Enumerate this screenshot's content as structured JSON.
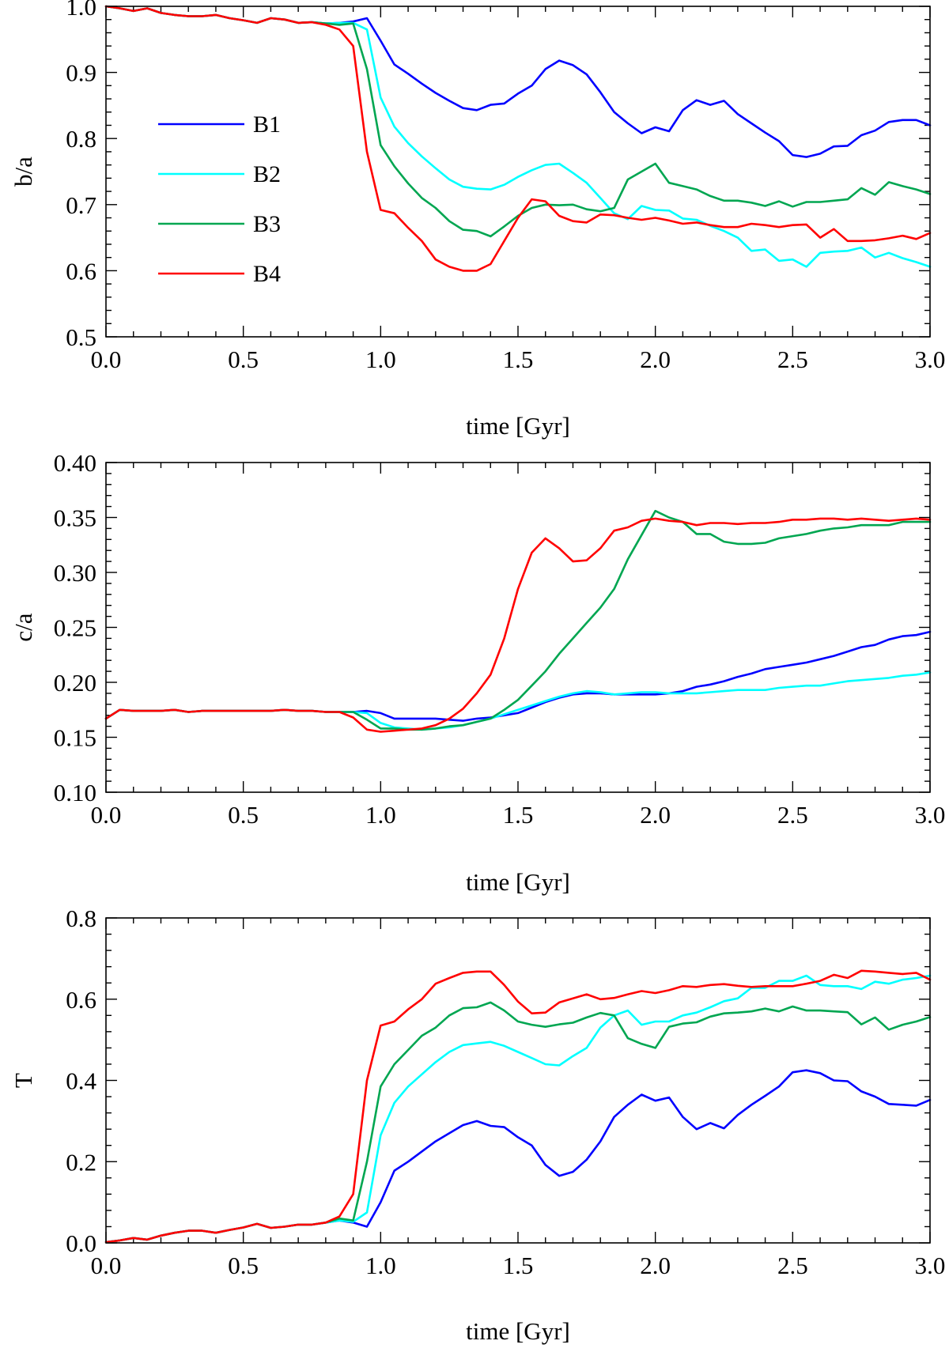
{
  "chart_data": [
    {
      "type": "line",
      "panel": "top",
      "ylabel": "b/a",
      "xlabel": "time [Gyr]",
      "xlim": [
        0.0,
        3.0
      ],
      "ylim": [
        0.5,
        1.0
      ],
      "xticks": [
        "0.0",
        "0.5",
        "1.0",
        "1.5",
        "2.0",
        "2.5",
        "3.0"
      ],
      "yticks": [
        "0.5",
        "0.6",
        "0.7",
        "0.8",
        "0.9",
        "1.0"
      ],
      "legend_position": "center-left",
      "x": [
        0.0,
        0.05,
        0.1,
        0.15,
        0.2,
        0.25,
        0.3,
        0.35,
        0.4,
        0.45,
        0.5,
        0.55,
        0.6,
        0.65,
        0.7,
        0.75,
        0.8,
        0.85,
        0.9,
        0.95,
        1.0,
        1.05,
        1.1,
        1.15,
        1.2,
        1.25,
        1.3,
        1.35,
        1.4,
        1.45,
        1.5,
        1.55,
        1.6,
        1.65,
        1.7,
        1.75,
        1.8,
        1.85,
        1.9,
        1.95,
        2.0,
        2.05,
        2.1,
        2.15,
        2.2,
        2.25,
        2.3,
        2.35,
        2.4,
        2.45,
        2.5,
        2.55,
        2.6,
        2.65,
        2.7,
        2.75,
        2.8,
        2.85,
        2.9,
        2.95,
        3.0
      ],
      "series": [
        {
          "name": "B1",
          "color": "#0000ff",
          "values": [
            1.0,
            0.997,
            0.993,
            0.997,
            0.99,
            0.987,
            0.985,
            0.985,
            0.987,
            0.982,
            0.979,
            0.975,
            0.982,
            0.98,
            0.975,
            0.976,
            0.974,
            0.975,
            0.977,
            0.982,
            0.948,
            0.912,
            0.898,
            0.883,
            0.869,
            0.857,
            0.846,
            0.843,
            0.851,
            0.853,
            0.868,
            0.88,
            0.905,
            0.918,
            0.911,
            0.897,
            0.87,
            0.84,
            0.823,
            0.808,
            0.817,
            0.811,
            0.843,
            0.858,
            0.851,
            0.857,
            0.837,
            0.823,
            0.809,
            0.796,
            0.775,
            0.772,
            0.777,
            0.788,
            0.789,
            0.805,
            0.812,
            0.825,
            0.828,
            0.828,
            0.82
          ]
        },
        {
          "name": "B2",
          "color": "#00ffff",
          "values": [
            1.0,
            0.997,
            0.993,
            0.997,
            0.99,
            0.987,
            0.985,
            0.985,
            0.987,
            0.982,
            0.979,
            0.975,
            0.982,
            0.98,
            0.975,
            0.976,
            0.974,
            0.975,
            0.975,
            0.965,
            0.862,
            0.818,
            0.793,
            0.773,
            0.755,
            0.738,
            0.727,
            0.724,
            0.723,
            0.73,
            0.742,
            0.752,
            0.76,
            0.762,
            0.748,
            0.733,
            0.71,
            0.687,
            0.678,
            0.698,
            0.692,
            0.691,
            0.679,
            0.677,
            0.668,
            0.66,
            0.65,
            0.63,
            0.632,
            0.615,
            0.617,
            0.606,
            0.627,
            0.629,
            0.63,
            0.635,
            0.62,
            0.627,
            0.619,
            0.613,
            0.606
          ]
        },
        {
          "name": "B3",
          "color": "#00a651",
          "values": [
            1.0,
            0.997,
            0.993,
            0.997,
            0.99,
            0.987,
            0.985,
            0.985,
            0.987,
            0.982,
            0.979,
            0.975,
            0.982,
            0.98,
            0.975,
            0.976,
            0.974,
            0.972,
            0.974,
            0.905,
            0.79,
            0.758,
            0.732,
            0.71,
            0.695,
            0.675,
            0.662,
            0.66,
            0.652,
            0.667,
            0.683,
            0.695,
            0.7,
            0.699,
            0.7,
            0.693,
            0.69,
            0.695,
            0.738,
            0.75,
            0.762,
            0.733,
            0.728,
            0.723,
            0.713,
            0.706,
            0.706,
            0.703,
            0.698,
            0.705,
            0.697,
            0.704,
            0.704,
            0.706,
            0.708,
            0.725,
            0.715,
            0.734,
            0.728,
            0.723,
            0.716
          ]
        },
        {
          "name": "B4",
          "color": "#ff0000",
          "values": [
            1.0,
            0.997,
            0.993,
            0.997,
            0.99,
            0.987,
            0.985,
            0.985,
            0.987,
            0.982,
            0.979,
            0.975,
            0.982,
            0.98,
            0.975,
            0.976,
            0.972,
            0.965,
            0.94,
            0.78,
            0.692,
            0.687,
            0.665,
            0.645,
            0.617,
            0.606,
            0.6,
            0.6,
            0.61,
            0.645,
            0.68,
            0.708,
            0.705,
            0.683,
            0.675,
            0.673,
            0.685,
            0.684,
            0.68,
            0.677,
            0.68,
            0.676,
            0.671,
            0.673,
            0.669,
            0.666,
            0.666,
            0.671,
            0.669,
            0.666,
            0.669,
            0.67,
            0.65,
            0.663,
            0.645,
            0.645,
            0.646,
            0.649,
            0.653,
            0.648,
            0.657
          ]
        }
      ]
    },
    {
      "type": "line",
      "panel": "middle",
      "ylabel": "c/a",
      "xlabel": "time [Gyr]",
      "xlim": [
        0.0,
        3.0
      ],
      "ylim": [
        0.1,
        0.4
      ],
      "xticks": [
        "0.0",
        "0.5",
        "1.0",
        "1.5",
        "2.0",
        "2.5",
        "3.0"
      ],
      "yticks": [
        "0.10",
        "0.15",
        "0.20",
        "0.25",
        "0.30",
        "0.35",
        "0.40"
      ],
      "x": [
        0.0,
        0.05,
        0.1,
        0.15,
        0.2,
        0.25,
        0.3,
        0.35,
        0.4,
        0.45,
        0.5,
        0.55,
        0.6,
        0.65,
        0.7,
        0.75,
        0.8,
        0.85,
        0.9,
        0.95,
        1.0,
        1.05,
        1.1,
        1.15,
        1.2,
        1.25,
        1.3,
        1.35,
        1.4,
        1.45,
        1.5,
        1.55,
        1.6,
        1.65,
        1.7,
        1.75,
        1.8,
        1.85,
        1.9,
        1.95,
        2.0,
        2.05,
        2.1,
        2.15,
        2.2,
        2.25,
        2.3,
        2.35,
        2.4,
        2.45,
        2.5,
        2.55,
        2.6,
        2.65,
        2.7,
        2.75,
        2.8,
        2.85,
        2.9,
        2.95,
        3.0
      ],
      "series": [
        {
          "name": "B1",
          "color": "#0000ff",
          "values": [
            0.167,
            0.175,
            0.174,
            0.174,
            0.174,
            0.175,
            0.173,
            0.174,
            0.174,
            0.174,
            0.174,
            0.174,
            0.174,
            0.175,
            0.174,
            0.174,
            0.173,
            0.173,
            0.173,
            0.174,
            0.172,
            0.167,
            0.167,
            0.167,
            0.167,
            0.166,
            0.165,
            0.167,
            0.168,
            0.17,
            0.172,
            0.177,
            0.182,
            0.186,
            0.189,
            0.19,
            0.19,
            0.189,
            0.189,
            0.189,
            0.189,
            0.19,
            0.192,
            0.196,
            0.198,
            0.201,
            0.205,
            0.208,
            0.212,
            0.214,
            0.216,
            0.218,
            0.221,
            0.224,
            0.228,
            0.232,
            0.234,
            0.239,
            0.242,
            0.243,
            0.246
          ]
        },
        {
          "name": "B2",
          "color": "#00ffff",
          "values": [
            0.167,
            0.175,
            0.174,
            0.174,
            0.174,
            0.175,
            0.173,
            0.174,
            0.174,
            0.174,
            0.174,
            0.174,
            0.174,
            0.175,
            0.174,
            0.174,
            0.173,
            0.173,
            0.173,
            0.172,
            0.163,
            0.159,
            0.158,
            0.157,
            0.158,
            0.159,
            0.161,
            0.164,
            0.167,
            0.171,
            0.175,
            0.179,
            0.183,
            0.187,
            0.19,
            0.192,
            0.191,
            0.189,
            0.19,
            0.191,
            0.191,
            0.19,
            0.19,
            0.19,
            0.191,
            0.192,
            0.193,
            0.193,
            0.193,
            0.195,
            0.196,
            0.197,
            0.197,
            0.199,
            0.201,
            0.202,
            0.203,
            0.204,
            0.206,
            0.207,
            0.209
          ]
        },
        {
          "name": "B3",
          "color": "#00a651",
          "values": [
            0.167,
            0.175,
            0.174,
            0.174,
            0.174,
            0.175,
            0.173,
            0.174,
            0.174,
            0.174,
            0.174,
            0.174,
            0.174,
            0.175,
            0.174,
            0.174,
            0.173,
            0.173,
            0.173,
            0.166,
            0.158,
            0.158,
            0.157,
            0.157,
            0.158,
            0.16,
            0.161,
            0.164,
            0.167,
            0.175,
            0.184,
            0.197,
            0.21,
            0.226,
            0.24,
            0.254,
            0.268,
            0.285,
            0.312,
            0.334,
            0.356,
            0.35,
            0.346,
            0.335,
            0.335,
            0.328,
            0.326,
            0.326,
            0.327,
            0.331,
            0.333,
            0.335,
            0.338,
            0.34,
            0.341,
            0.343,
            0.343,
            0.343,
            0.346,
            0.346,
            0.346
          ]
        },
        {
          "name": "B4",
          "color": "#ff0000",
          "values": [
            0.167,
            0.175,
            0.174,
            0.174,
            0.174,
            0.175,
            0.173,
            0.174,
            0.174,
            0.174,
            0.174,
            0.174,
            0.174,
            0.175,
            0.174,
            0.174,
            0.173,
            0.173,
            0.168,
            0.157,
            0.155,
            0.156,
            0.157,
            0.158,
            0.161,
            0.167,
            0.176,
            0.19,
            0.207,
            0.24,
            0.285,
            0.318,
            0.331,
            0.322,
            0.31,
            0.311,
            0.322,
            0.338,
            0.341,
            0.347,
            0.349,
            0.347,
            0.346,
            0.343,
            0.345,
            0.345,
            0.344,
            0.345,
            0.345,
            0.346,
            0.348,
            0.348,
            0.349,
            0.349,
            0.348,
            0.349,
            0.348,
            0.347,
            0.348,
            0.349,
            0.348
          ]
        }
      ]
    },
    {
      "type": "line",
      "panel": "bottom",
      "ylabel": "T",
      "xlabel": "time [Gyr]",
      "xlim": [
        0.0,
        3.0
      ],
      "ylim": [
        0.0,
        0.8
      ],
      "xticks": [
        "0.0",
        "0.5",
        "1.0",
        "1.5",
        "2.0",
        "2.5",
        "3.0"
      ],
      "yticks": [
        "0.0",
        "0.2",
        "0.4",
        "0.6",
        "0.8"
      ],
      "x": [
        0.0,
        0.05,
        0.1,
        0.15,
        0.2,
        0.25,
        0.3,
        0.35,
        0.4,
        0.45,
        0.5,
        0.55,
        0.6,
        0.65,
        0.7,
        0.75,
        0.8,
        0.85,
        0.9,
        0.95,
        1.0,
        1.05,
        1.1,
        1.15,
        1.2,
        1.25,
        1.3,
        1.35,
        1.4,
        1.45,
        1.5,
        1.55,
        1.6,
        1.65,
        1.7,
        1.75,
        1.8,
        1.85,
        1.9,
        1.95,
        2.0,
        2.05,
        2.1,
        2.15,
        2.2,
        2.25,
        2.3,
        2.35,
        2.4,
        2.45,
        2.5,
        2.55,
        2.6,
        2.65,
        2.7,
        2.75,
        2.8,
        2.85,
        2.9,
        2.95,
        3.0
      ],
      "series": [
        {
          "name": "B1",
          "color": "#0000ff",
          "values": [
            0.002,
            0.006,
            0.012,
            0.008,
            0.018,
            0.025,
            0.03,
            0.03,
            0.025,
            0.032,
            0.038,
            0.047,
            0.037,
            0.04,
            0.045,
            0.045,
            0.05,
            0.055,
            0.05,
            0.04,
            0.1,
            0.178,
            0.2,
            0.225,
            0.25,
            0.27,
            0.29,
            0.3,
            0.288,
            0.285,
            0.26,
            0.24,
            0.192,
            0.165,
            0.175,
            0.205,
            0.25,
            0.31,
            0.34,
            0.365,
            0.35,
            0.358,
            0.31,
            0.28,
            0.295,
            0.282,
            0.315,
            0.34,
            0.362,
            0.385,
            0.42,
            0.425,
            0.418,
            0.4,
            0.398,
            0.373,
            0.36,
            0.342,
            0.34,
            0.338,
            0.352
          ]
        },
        {
          "name": "B2",
          "color": "#00ffff",
          "values": [
            0.002,
            0.006,
            0.012,
            0.008,
            0.018,
            0.025,
            0.03,
            0.03,
            0.025,
            0.032,
            0.038,
            0.047,
            0.037,
            0.04,
            0.045,
            0.045,
            0.05,
            0.055,
            0.052,
            0.075,
            0.265,
            0.345,
            0.385,
            0.415,
            0.445,
            0.47,
            0.487,
            0.491,
            0.495,
            0.485,
            0.47,
            0.455,
            0.44,
            0.437,
            0.46,
            0.48,
            0.53,
            0.56,
            0.572,
            0.537,
            0.545,
            0.545,
            0.56,
            0.567,
            0.58,
            0.595,
            0.602,
            0.628,
            0.628,
            0.645,
            0.645,
            0.658,
            0.635,
            0.632,
            0.632,
            0.625,
            0.643,
            0.638,
            0.648,
            0.652,
            0.658
          ]
        },
        {
          "name": "B3",
          "color": "#00a651",
          "values": [
            0.002,
            0.006,
            0.012,
            0.008,
            0.018,
            0.025,
            0.03,
            0.03,
            0.025,
            0.032,
            0.038,
            0.047,
            0.037,
            0.04,
            0.045,
            0.045,
            0.05,
            0.06,
            0.055,
            0.2,
            0.385,
            0.44,
            0.475,
            0.51,
            0.53,
            0.56,
            0.578,
            0.58,
            0.592,
            0.572,
            0.545,
            0.537,
            0.532,
            0.538,
            0.542,
            0.555,
            0.566,
            0.56,
            0.504,
            0.49,
            0.48,
            0.532,
            0.54,
            0.543,
            0.557,
            0.565,
            0.567,
            0.57,
            0.577,
            0.57,
            0.582,
            0.572,
            0.572,
            0.57,
            0.568,
            0.538,
            0.555,
            0.525,
            0.537,
            0.545,
            0.556
          ]
        },
        {
          "name": "B4",
          "color": "#ff0000",
          "values": [
            0.002,
            0.006,
            0.012,
            0.008,
            0.018,
            0.025,
            0.03,
            0.03,
            0.025,
            0.032,
            0.038,
            0.047,
            0.037,
            0.04,
            0.045,
            0.045,
            0.05,
            0.065,
            0.12,
            0.4,
            0.535,
            0.545,
            0.575,
            0.6,
            0.638,
            0.652,
            0.665,
            0.668,
            0.668,
            0.635,
            0.594,
            0.565,
            0.567,
            0.592,
            0.602,
            0.612,
            0.6,
            0.603,
            0.612,
            0.62,
            0.615,
            0.622,
            0.632,
            0.63,
            0.635,
            0.637,
            0.633,
            0.63,
            0.632,
            0.632,
            0.632,
            0.638,
            0.645,
            0.66,
            0.652,
            0.67,
            0.668,
            0.665,
            0.662,
            0.665,
            0.648
          ]
        }
      ]
    }
  ]
}
